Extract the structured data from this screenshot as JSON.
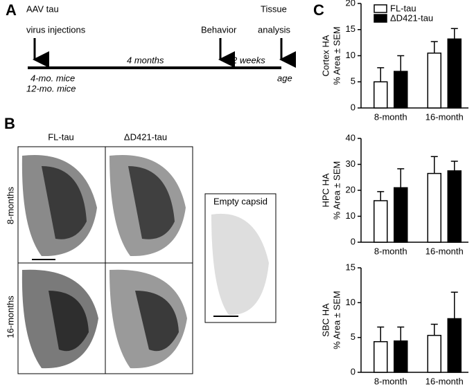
{
  "panels": [
    "A",
    "B",
    "C"
  ],
  "timeline": {
    "start": [
      "AAV tau",
      "virus injections"
    ],
    "groups": [
      "4-mo. mice",
      "12-mo. mice"
    ],
    "interval1": "4 months",
    "middle": "Behavior",
    "interval2": "2 weeks",
    "end": [
      "Tissue",
      "analysis"
    ],
    "axis": "age"
  },
  "images": {
    "columns": [
      "FL-tau",
      "ΔD421-tau"
    ],
    "rows": [
      "8-months",
      "16-months"
    ],
    "control": "Empty capsid"
  },
  "chart_data": [
    {
      "type": "bar",
      "ylabel": [
        "Cortex HA",
        "% Area ± SEM"
      ],
      "categories": [
        "8-month",
        "16-month"
      ],
      "ylim": [
        0,
        20
      ],
      "yticks": [
        0,
        5,
        10,
        15,
        20
      ],
      "legend": "top-left",
      "series": [
        {
          "name": "FL-tau",
          "color": "#ffffff",
          "values": [
            5.0,
            10.5
          ],
          "errors": [
            2.7,
            2.2
          ]
        },
        {
          "name": "ΔD421-tau",
          "color": "#000000",
          "values": [
            7.0,
            13.2
          ],
          "errors": [
            3.0,
            2.0
          ]
        }
      ]
    },
    {
      "type": "bar",
      "ylabel": [
        "HPC HA",
        "% Area ± SEM"
      ],
      "categories": [
        "8-month",
        "16-month"
      ],
      "ylim": [
        0,
        40
      ],
      "yticks": [
        0,
        10,
        20,
        30,
        40
      ],
      "series": [
        {
          "color": "#ffffff",
          "values": [
            16.0,
            26.5
          ],
          "errors": [
            3.5,
            6.5
          ]
        },
        {
          "color": "#000000",
          "values": [
            21.0,
            27.5
          ],
          "errors": [
            7.3,
            3.7
          ]
        }
      ]
    },
    {
      "type": "bar",
      "ylabel": [
        "SBC HA",
        "% Area ± SEM"
      ],
      "categories": [
        "8-month",
        "16-month"
      ],
      "ylim": [
        0,
        15
      ],
      "yticks": [
        0,
        5,
        10,
        15
      ],
      "series": [
        {
          "color": "#ffffff",
          "values": [
            4.4,
            5.3
          ],
          "errors": [
            2.1,
            1.6
          ]
        },
        {
          "color": "#000000",
          "values": [
            4.5,
            7.7
          ],
          "errors": [
            2.0,
            3.8
          ]
        }
      ]
    }
  ]
}
